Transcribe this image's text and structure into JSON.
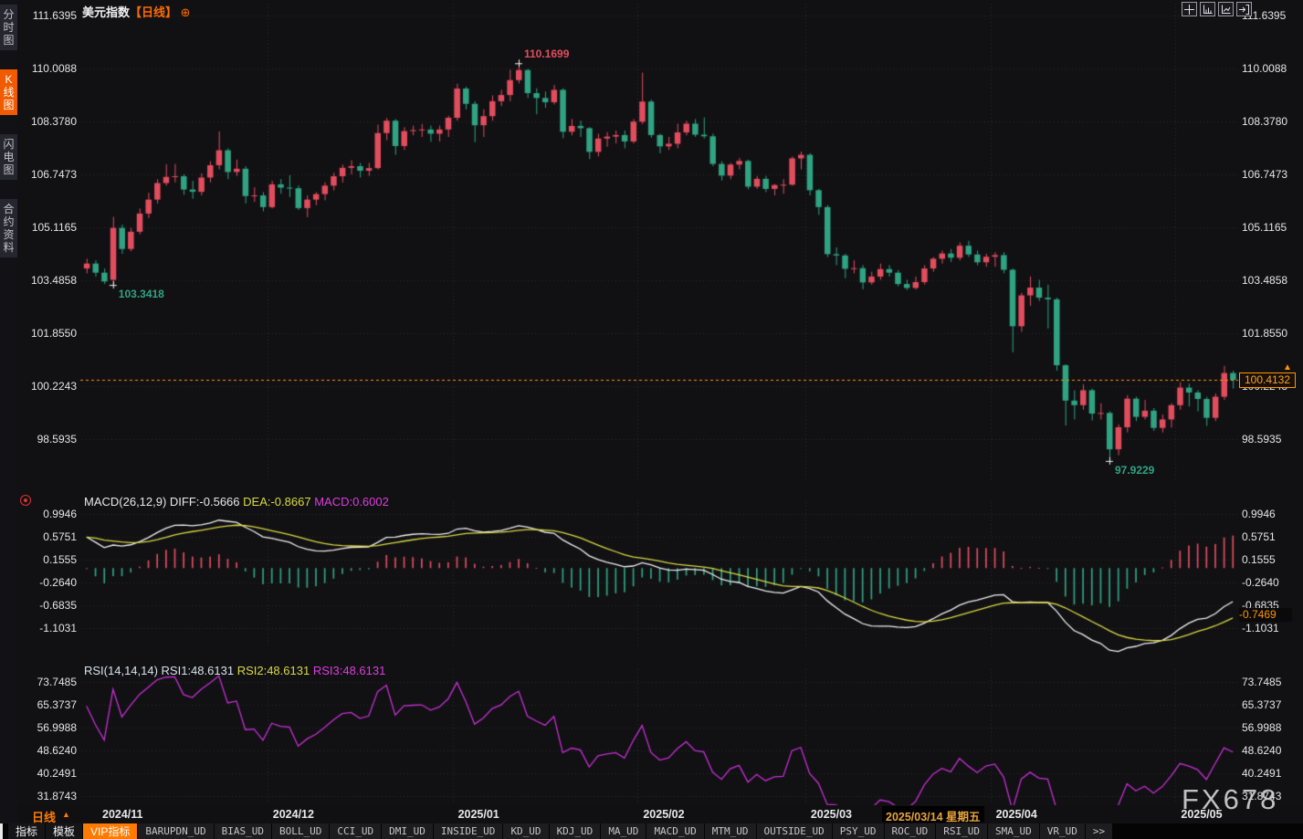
{
  "header": {
    "title": "美元指数",
    "period_tag": "【日线】",
    "expand_icon": "⊕"
  },
  "sidebar": {
    "items": [
      {
        "label": "分时图",
        "active": false
      },
      {
        "label": "K线图",
        "active": true
      },
      {
        "label": "闪电图",
        "active": false
      },
      {
        "label": "合约资料",
        "active": false
      }
    ]
  },
  "top_icons": [
    {
      "name": "crosshair-icon"
    },
    {
      "name": "bar-scale-icon"
    },
    {
      "name": "trend-scale-icon"
    },
    {
      "name": "collapse-right-icon"
    }
  ],
  "colors": {
    "up": "#e24d5e",
    "down": "#30a383",
    "accent_orange": "#ff7a00",
    "price_line": "#ff9500",
    "diff_line": "#f0f0f4",
    "dea_line": "#d9d943",
    "rsi_line": "#c92fd4",
    "grid": "#2e2e34",
    "axis_text": "#e5e5e8"
  },
  "chart_data": {
    "type": "candlestick",
    "title": "美元指数 日线",
    "price_axis_ticks": [
      111.6395,
      110.0088,
      108.378,
      106.7473,
      105.1165,
      103.4858,
      101.855,
      100.2243,
      98.5935
    ],
    "months": [
      {
        "index": 0,
        "label": "2024/11"
      },
      {
        "index": 21,
        "label": "2024/12"
      },
      {
        "index": 42,
        "label": "2025/01"
      },
      {
        "index": 63,
        "label": "2025/02"
      },
      {
        "index": 82,
        "label": "2025/03"
      },
      {
        "index": 103,
        "label": "2025/04"
      },
      {
        "index": 124,
        "label": "2025/05"
      }
    ],
    "candles": [
      [
        103.85,
        104.15,
        103.7,
        104.0
      ],
      [
        104.0,
        104.1,
        103.6,
        103.72
      ],
      [
        103.72,
        103.85,
        103.37,
        103.45
      ],
      [
        103.5,
        105.44,
        103.3418,
        105.1
      ],
      [
        105.1,
        105.2,
        104.3,
        104.45
      ],
      [
        104.45,
        105.1,
        104.38,
        104.98
      ],
      [
        104.98,
        105.7,
        104.9,
        105.54
      ],
      [
        105.54,
        106.18,
        105.4,
        105.97
      ],
      [
        105.97,
        106.6,
        105.85,
        106.48
      ],
      [
        106.48,
        107.06,
        106.4,
        106.67
      ],
      [
        106.67,
        107.07,
        106.5,
        106.69
      ],
      [
        106.69,
        106.75,
        106.12,
        106.28
      ],
      [
        106.28,
        106.55,
        106.0,
        106.21
      ],
      [
        106.21,
        106.78,
        106.1,
        106.65
      ],
      [
        106.65,
        107.15,
        106.5,
        107.03
      ],
      [
        107.03,
        108.07,
        106.9,
        107.49
      ],
      [
        107.49,
        107.55,
        106.6,
        106.82
      ],
      [
        106.82,
        107.2,
        106.7,
        106.92
      ],
      [
        106.92,
        107.0,
        105.85,
        106.08
      ],
      [
        106.08,
        106.35,
        105.9,
        106.1
      ],
      [
        106.1,
        106.2,
        105.61,
        105.74
      ],
      [
        105.74,
        106.55,
        105.7,
        106.44
      ],
      [
        106.44,
        106.6,
        106.15,
        106.34
      ],
      [
        106.34,
        106.72,
        106.05,
        106.32
      ],
      [
        106.32,
        106.4,
        105.65,
        105.71
      ],
      [
        105.71,
        106.1,
        105.43,
        105.97
      ],
      [
        105.97,
        106.2,
        105.8,
        106.14
      ],
      [
        106.14,
        106.5,
        105.95,
        106.4
      ],
      [
        106.4,
        106.8,
        106.25,
        106.69
      ],
      [
        106.69,
        107.05,
        106.5,
        106.95
      ],
      [
        106.95,
        107.18,
        106.75,
        107.0
      ],
      [
        107.0,
        107.1,
        106.65,
        106.86
      ],
      [
        106.86,
        107.1,
        106.7,
        106.94
      ],
      [
        106.94,
        108.28,
        106.9,
        108.02
      ],
      [
        108.02,
        108.48,
        107.8,
        108.4
      ],
      [
        108.4,
        108.45,
        107.35,
        107.62
      ],
      [
        107.62,
        108.2,
        107.5,
        108.08
      ],
      [
        108.08,
        108.25,
        107.95,
        108.11
      ],
      [
        108.11,
        108.3,
        107.9,
        108.13
      ],
      [
        108.13,
        108.25,
        107.75,
        108.0
      ],
      [
        108.0,
        108.25,
        107.76,
        108.13
      ],
      [
        108.13,
        108.55,
        107.9,
        108.49
      ],
      [
        108.49,
        109.54,
        108.4,
        109.39
      ],
      [
        109.39,
        109.45,
        108.75,
        108.92
      ],
      [
        108.92,
        109.0,
        107.74,
        108.26
      ],
      [
        108.26,
        108.75,
        107.9,
        108.54
      ],
      [
        108.54,
        109.18,
        108.4,
        109.0
      ],
      [
        109.0,
        109.35,
        108.85,
        109.19
      ],
      [
        109.19,
        109.97,
        109.0,
        109.65
      ],
      [
        109.65,
        110.1699,
        109.55,
        109.96
      ],
      [
        109.96,
        110.0,
        109.1,
        109.25
      ],
      [
        109.25,
        109.4,
        108.6,
        109.1
      ],
      [
        109.1,
        109.3,
        108.8,
        108.97
      ],
      [
        108.97,
        109.5,
        108.9,
        109.35
      ],
      [
        109.35,
        109.4,
        107.86,
        108.06
      ],
      [
        108.06,
        108.45,
        107.95,
        108.24
      ],
      [
        108.24,
        108.4,
        107.9,
        108.17
      ],
      [
        108.17,
        108.2,
        107.22,
        107.44
      ],
      [
        107.44,
        108.0,
        107.3,
        107.85
      ],
      [
        107.85,
        108.05,
        107.6,
        107.91
      ],
      [
        107.91,
        108.1,
        107.7,
        107.96
      ],
      [
        107.96,
        108.1,
        107.55,
        107.76
      ],
      [
        107.76,
        108.45,
        107.7,
        108.37
      ],
      [
        108.37,
        109.88,
        108.3,
        108.99
      ],
      [
        108.99,
        109.05,
        107.88,
        107.96
      ],
      [
        107.96,
        108.0,
        107.4,
        107.61
      ],
      [
        107.61,
        107.9,
        107.5,
        107.69
      ],
      [
        107.69,
        108.31,
        107.55,
        108.04
      ],
      [
        108.04,
        108.4,
        107.95,
        108.31
      ],
      [
        108.31,
        108.45,
        107.9,
        107.97
      ],
      [
        107.97,
        108.5,
        107.85,
        107.92
      ],
      [
        107.92,
        108.0,
        107.0,
        107.07
      ],
      [
        107.07,
        107.15,
        106.56,
        106.71
      ],
      [
        106.71,
        107.1,
        106.6,
        107.05
      ],
      [
        107.05,
        107.25,
        106.9,
        107.16
      ],
      [
        107.16,
        107.2,
        106.29,
        106.37
      ],
      [
        106.37,
        106.7,
        106.3,
        106.61
      ],
      [
        106.61,
        106.7,
        106.2,
        106.3
      ],
      [
        106.3,
        106.45,
        106.1,
        106.42
      ],
      [
        106.42,
        106.6,
        106.15,
        106.43
      ],
      [
        106.43,
        107.3,
        106.4,
        107.24
      ],
      [
        107.24,
        107.45,
        106.9,
        107.35
      ],
      [
        107.35,
        107.4,
        106.1,
        106.26
      ],
      [
        106.26,
        106.3,
        105.5,
        105.74
      ],
      [
        105.74,
        105.8,
        104.2,
        104.29
      ],
      [
        104.29,
        104.5,
        103.95,
        104.25
      ],
      [
        104.25,
        104.3,
        103.55,
        103.84
      ],
      [
        103.84,
        104.1,
        103.7,
        103.86
      ],
      [
        103.86,
        103.95,
        103.21,
        103.42
      ],
      [
        103.42,
        103.75,
        103.35,
        103.6
      ],
      [
        103.6,
        104.0,
        103.5,
        103.83
      ],
      [
        103.83,
        103.95,
        103.6,
        103.72
      ],
      [
        103.72,
        103.8,
        103.3,
        103.37
      ],
      [
        103.37,
        103.5,
        103.19,
        103.25
      ],
      [
        103.25,
        103.6,
        103.2,
        103.43
      ],
      [
        103.43,
        103.95,
        103.35,
        103.85
      ],
      [
        103.85,
        104.2,
        103.75,
        104.15
      ],
      [
        104.15,
        104.4,
        104.0,
        104.31
      ],
      [
        104.31,
        104.45,
        104.05,
        104.18
      ],
      [
        104.18,
        104.65,
        104.1,
        104.55
      ],
      [
        104.55,
        104.7,
        104.2,
        104.28
      ],
      [
        104.28,
        104.4,
        103.95,
        104.04
      ],
      [
        104.04,
        104.3,
        103.9,
        104.21
      ],
      [
        104.21,
        104.35,
        103.9,
        104.26
      ],
      [
        104.26,
        104.35,
        103.7,
        103.81
      ],
      [
        103.81,
        103.85,
        101.27,
        102.07
      ],
      [
        102.07,
        103.1,
        101.9,
        103.02
      ],
      [
        103.02,
        103.6,
        102.7,
        103.26
      ],
      [
        103.26,
        103.5,
        102.85,
        102.95
      ],
      [
        102.95,
        103.35,
        102.0,
        102.9
      ],
      [
        102.9,
        102.95,
        100.7,
        100.87
      ],
      [
        100.87,
        100.9,
        99.01,
        99.78
      ],
      [
        99.78,
        100.1,
        99.2,
        99.64
      ],
      [
        99.64,
        100.28,
        99.5,
        100.1
      ],
      [
        100.1,
        100.15,
        99.17,
        99.38
      ],
      [
        99.38,
        99.7,
        99.2,
        99.4
      ],
      [
        99.4,
        99.45,
        97.9229,
        98.28
      ],
      [
        98.28,
        99.05,
        98.1,
        98.96
      ],
      [
        98.96,
        99.95,
        98.8,
        99.84
      ],
      [
        99.84,
        99.9,
        99.15,
        99.28
      ],
      [
        99.28,
        99.8,
        99.2,
        99.47
      ],
      [
        99.47,
        99.55,
        98.85,
        98.94
      ],
      [
        98.94,
        99.35,
        98.8,
        99.2
      ],
      [
        99.2,
        99.7,
        98.95,
        99.64
      ],
      [
        99.64,
        100.35,
        99.5,
        100.18
      ],
      [
        100.18,
        100.3,
        99.6,
        100.03
      ],
      [
        100.03,
        100.1,
        99.45,
        99.83
      ],
      [
        99.83,
        99.9,
        99.0,
        99.25
      ],
      [
        99.25,
        100.0,
        99.15,
        99.9
      ],
      [
        99.9,
        100.85,
        99.8,
        100.63
      ],
      [
        100.63,
        100.7,
        100.15,
        100.4132
      ]
    ],
    "annotations": [
      {
        "index": 49,
        "price": 110.1699,
        "text": "110.1699",
        "kind": "high"
      },
      {
        "index": 3,
        "price": 103.3418,
        "text": "103.3418",
        "kind": "low"
      },
      {
        "index": 116,
        "price": 97.9229,
        "text": "97.9229",
        "kind": "low"
      }
    ],
    "last_price": {
      "text": "100.4132",
      "value": 100.4132,
      "arrow": "▲"
    },
    "macd": {
      "header_left": "MACD(26,12,9) DIFF:-0.5666",
      "header_dea": "DEA:-0.8667",
      "header_macd": "MACD:0.6002",
      "params": {
        "slow": 26,
        "fast": 12,
        "signal": 9
      },
      "axis_ticks": [
        0.9946,
        0.5751,
        0.1555,
        -0.264,
        -0.6835,
        -1.1031
      ],
      "current_label": "-0.7469",
      "seed": {
        "ema_fast_offset": 0.37,
        "ema_slow_offset": -0.2,
        "dea": 0.57
      }
    },
    "rsi": {
      "header_left": "RSI(14,14,14) RSI1:48.6131",
      "header_2": "RSI2:48.6131",
      "header_3": "RSI3:48.6131",
      "period": 14,
      "axis_ticks": [
        73.7485,
        65.3737,
        56.9988,
        48.624,
        40.2491,
        31.8743
      ],
      "seed": {
        "gain": 0.12,
        "loss": 0.065
      }
    }
  },
  "xaxis": {
    "period_button": "日线",
    "period_arrow": "▲",
    "highlight_date": "2025/03/14 星期五"
  },
  "toolbar": {
    "items": [
      "指标",
      "模板",
      "VIP指标",
      "BARUPDN_UD",
      "BIAS_UD",
      "BOLL_UD",
      "CCI_UD",
      "DMI_UD",
      "INSIDE_UD",
      "KD_UD",
      "KDJ_UD",
      "MA_UD",
      "MACD_UD",
      "MTM_UD",
      "OUTSIDE_UD",
      "PSY_UD",
      "ROC_UD",
      "RSI_UD",
      "SMA_UD",
      "VR_UD",
      ">>"
    ],
    "active_item": "VIP指标"
  },
  "watermark": "FX678"
}
